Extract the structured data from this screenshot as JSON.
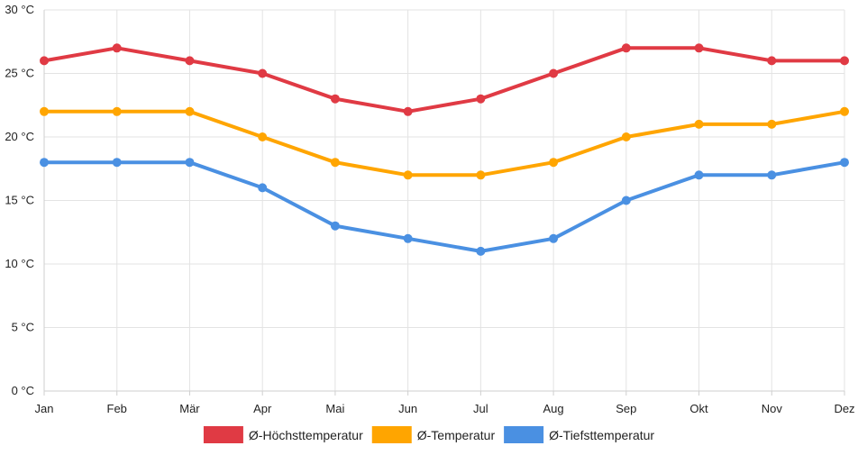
{
  "chart_data": {
    "type": "line",
    "categories": [
      "Jan",
      "Feb",
      "Mär",
      "Apr",
      "Mai",
      "Jun",
      "Jul",
      "Aug",
      "Sep",
      "Okt",
      "Nov",
      "Dez"
    ],
    "y_tick_labels": [
      "0 °C",
      "5 °C",
      "10 °C",
      "15 °C",
      "20 °C",
      "25 °C",
      "30 °C"
    ],
    "y_ticks": [
      0,
      5,
      10,
      15,
      20,
      25,
      30
    ],
    "ylim": [
      0,
      30
    ],
    "grid": true,
    "legend_position": "bottom",
    "series": [
      {
        "name": "Ø-Höchsttemperatur",
        "color": "#e03a44",
        "values": [
          26,
          27,
          26,
          25,
          23,
          22,
          23,
          25,
          27,
          27,
          26,
          26
        ]
      },
      {
        "name": "Ø-Temperatur",
        "color": "#ffa500",
        "values": [
          22,
          22,
          22,
          20,
          18,
          17,
          17,
          18,
          20,
          21,
          21,
          22
        ]
      },
      {
        "name": "Ø-Tiefsttemperatur",
        "color": "#4a90e2",
        "values": [
          18,
          18,
          18,
          16,
          13,
          12,
          11,
          12,
          15,
          17,
          17,
          18
        ]
      }
    ]
  }
}
